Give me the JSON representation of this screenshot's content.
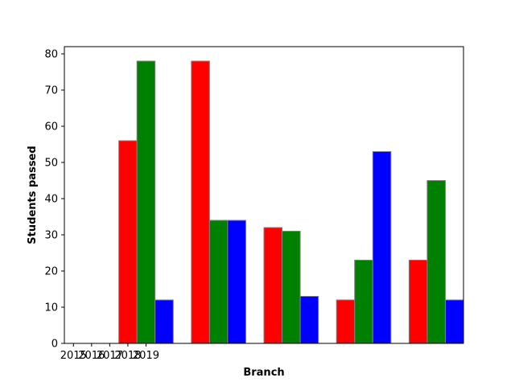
{
  "chart_data": {
    "type": "bar",
    "xlabel": "Branch",
    "ylabel": "Students passed",
    "ylim": [
      0,
      82
    ],
    "y_ticks": [
      0,
      10,
      20,
      30,
      40,
      50,
      60,
      70,
      80
    ],
    "x_tick_labels": [
      "2015",
      "2016",
      "2017",
      "2018",
      "2019"
    ],
    "groups": 5,
    "series": [
      {
        "color": "#ff0000",
        "values": [
          56,
          78,
          32,
          12,
          23
        ]
      },
      {
        "color": "#008000",
        "values": [
          78,
          34,
          31,
          23,
          45
        ]
      },
      {
        "color": "#0000ff",
        "values": [
          12,
          34,
          13,
          53,
          12
        ]
      }
    ],
    "bar_edge_color": "#808080",
    "grid": false,
    "legend": "none"
  }
}
